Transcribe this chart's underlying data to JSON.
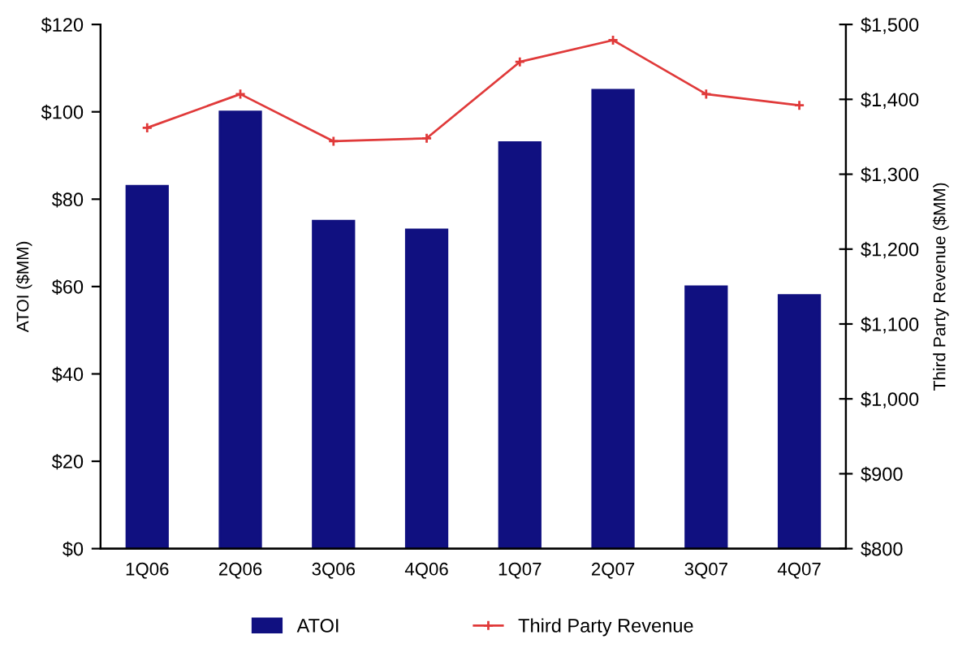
{
  "chart_data": {
    "type": "bar",
    "categories": [
      "1Q06",
      "2Q06",
      "3Q06",
      "4Q06",
      "1Q07",
      "2Q07",
      "3Q07",
      "4Q07"
    ],
    "series": [
      {
        "name": "ATOI",
        "color": "#101080",
        "values": [
          83,
          100,
          75,
          73,
          93,
          105,
          60,
          58
        ]
      },
      {
        "name": "Third Party Revenue",
        "type": "line",
        "axis": "y2",
        "color": "#e03a3a",
        "marker": "cross",
        "line_style": "solid",
        "values": [
          1362,
          1407,
          1344,
          1348,
          1450,
          1479,
          1407,
          1392
        ]
      }
    ],
    "ylabel": "ATOI ($MM)",
    "y2label": "Third Party Revenue ($MM)",
    "ylim": [
      0,
      120
    ],
    "yticks": [
      {
        "value": 0,
        "label": "$0"
      },
      {
        "value": 20,
        "label": "$20"
      },
      {
        "value": 40,
        "label": "$40"
      },
      {
        "value": 60,
        "label": "$60"
      },
      {
        "value": 80,
        "label": "$80"
      },
      {
        "value": 100,
        "label": "$100"
      },
      {
        "value": 120,
        "label": "$120"
      }
    ],
    "y2lim": [
      800,
      1500
    ],
    "y2ticks": [
      {
        "value": 800,
        "label": "$800"
      },
      {
        "value": 900,
        "label": "$900"
      },
      {
        "value": 1000,
        "label": "$1,000"
      },
      {
        "value": 1100,
        "label": "$1,100"
      },
      {
        "value": 1200,
        "label": "$1,200"
      },
      {
        "value": 1300,
        "label": "$1,300"
      },
      {
        "value": 1400,
        "label": "$1,400"
      },
      {
        "value": 1500,
        "label": "$1,500"
      }
    ],
    "grid": false,
    "legend": "bottom"
  }
}
